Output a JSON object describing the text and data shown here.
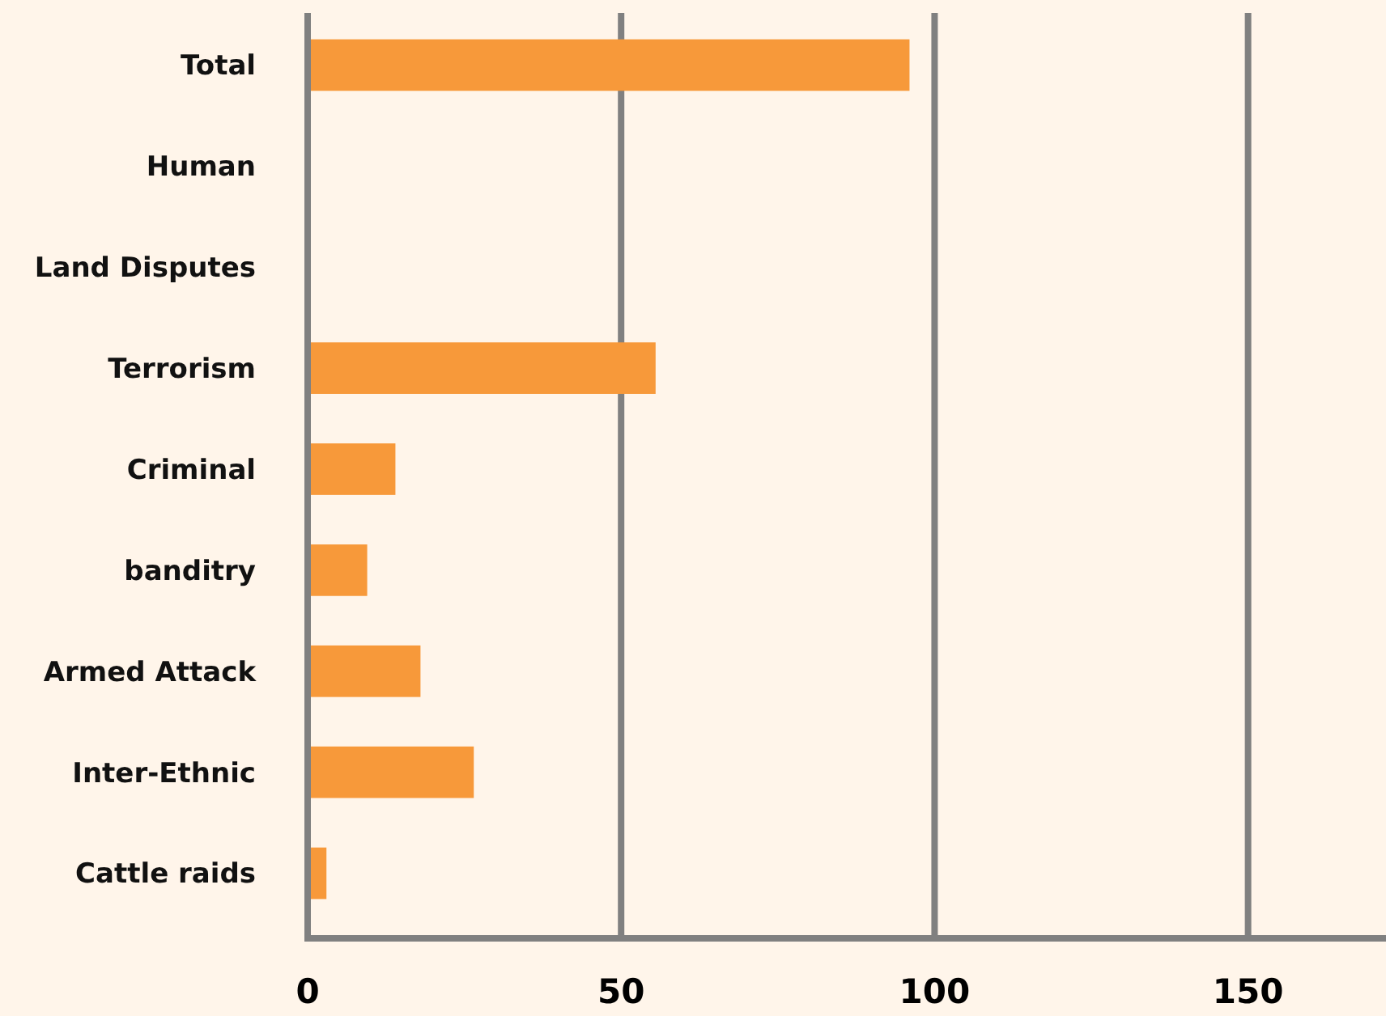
{
  "chart_data": {
    "type": "bar",
    "orientation": "horizontal",
    "categories": [
      "Total",
      "Human",
      "Land Disputes",
      "Terrorism",
      "Criminal",
      "banditry",
      "Armed Attack",
      "Inter-Ethnic",
      "Cattle raids"
    ],
    "values": [
      96,
      null,
      null,
      55.5,
      14,
      9.5,
      18,
      26.5,
      3
    ],
    "color": "#f7993a",
    "xlim": [
      0,
      172
    ],
    "xticks": [
      0,
      50,
      100,
      150
    ],
    "grid": "x"
  }
}
